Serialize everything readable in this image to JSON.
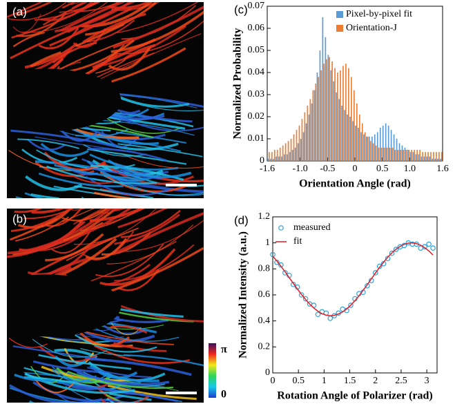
{
  "panels": {
    "a_label": "(a)",
    "b_label": "(b)",
    "colorbar": {
      "max_label": "π",
      "min_label": "0"
    }
  },
  "chart_data": [
    {
      "type": "histogram",
      "panel_label": "(c)",
      "x_label": "Orientation Angle (rad)",
      "y_label": "Normalized Probability",
      "bins": [
        -1.6,
        -1.55,
        -1.5,
        -1.45,
        -1.4,
        -1.35,
        -1.3,
        -1.25,
        -1.2,
        -1.15,
        -1.1,
        -1.05,
        -1.0,
        -0.95,
        -0.9,
        -0.85,
        -0.8,
        -0.75,
        -0.7,
        -0.65,
        -0.6,
        -0.55,
        -0.5,
        -0.45,
        -0.4,
        -0.35,
        -0.3,
        -0.25,
        -0.2,
        -0.15,
        -0.1,
        -0.05,
        0,
        0.05,
        0.1,
        0.15,
        0.2,
        0.25,
        0.3,
        0.35,
        0.4,
        0.45,
        0.5,
        0.55,
        0.6,
        0.65,
        0.7,
        0.75,
        0.8,
        0.85,
        0.9,
        0.95,
        1.0,
        1.05,
        1.1,
        1.15,
        1.2,
        1.25,
        1.3,
        1.35,
        1.4,
        1.45,
        1.5,
        1.55,
        1.6
      ],
      "series": [
        {
          "name": "Pixel-by-pixel fit",
          "color": "#5b9bd5",
          "values": [
            0.001,
            0.001,
            0.001,
            0.002,
            0.002,
            0.002,
            0.003,
            0.003,
            0.004,
            0.005,
            0.006,
            0.008,
            0.01,
            0.013,
            0.017,
            0.021,
            0.026,
            0.032,
            0.04,
            0.05,
            0.065,
            0.056,
            0.048,
            0.041,
            0.036,
            0.031,
            0.028,
            0.025,
            0.023,
            0.021,
            0.02,
            0.018,
            0.016,
            0.015,
            0.013,
            0.012,
            0.011,
            0.011,
            0.011,
            0.012,
            0.013,
            0.015,
            0.016,
            0.017,
            0.016,
            0.014,
            0.012,
            0.01,
            0.008,
            0.007,
            0.006,
            0.005,
            0.004,
            0.004,
            0.003,
            0.003,
            0.002,
            0.002,
            0.002,
            0.002,
            0.001,
            0.001,
            0.001,
            0.001
          ]
        },
        {
          "name": "Orientation-J",
          "color": "#ed7d31",
          "values": [
            0.004,
            0.004,
            0.005,
            0.005,
            0.006,
            0.007,
            0.008,
            0.009,
            0.01,
            0.012,
            0.014,
            0.016,
            0.019,
            0.022,
            0.025,
            0.028,
            0.032,
            0.035,
            0.038,
            0.041,
            0.044,
            0.046,
            0.047,
            0.045,
            0.042,
            0.04,
            0.041,
            0.043,
            0.044,
            0.042,
            0.038,
            0.032,
            0.026,
            0.021,
            0.017,
            0.013,
            0.011,
            0.009,
            0.008,
            0.007,
            0.006,
            0.006,
            0.006,
            0.006,
            0.006,
            0.006,
            0.005,
            0.005,
            0.005,
            0.005,
            0.005,
            0.005,
            0.005,
            0.005,
            0.005,
            0.005,
            0.004,
            0.004,
            0.004,
            0.004,
            0.004,
            0.004,
            0.004,
            0.004
          ]
        }
      ],
      "xlim": [
        -1.6,
        1.6
      ],
      "ylim": [
        0,
        0.07
      ],
      "xticks": [
        {
          "value": -1.6,
          "label": "-1.6"
        },
        {
          "value": -1,
          "label": "-1.0"
        },
        -0.5,
        0,
        0.5,
        {
          "value": 1,
          "label": "1.0"
        },
        1.6
      ],
      "yticks": [
        0,
        0.01,
        0.02,
        0.03,
        0.04,
        0.05,
        0.06,
        0.07
      ],
      "legend": "upper-right"
    },
    {
      "type": "scatter",
      "panel_label": "(d)",
      "x_label": "Rotation Angle of Polarizer (rad)",
      "y_label": "Normalized Intensity (a.u.)",
      "x": [
        0,
        0.08,
        0.16,
        0.24,
        0.32,
        0.4,
        0.48,
        0.56,
        0.64,
        0.72,
        0.8,
        0.88,
        0.96,
        1.04,
        1.12,
        1.2,
        1.28,
        1.36,
        1.44,
        1.52,
        1.6,
        1.68,
        1.76,
        1.84,
        1.92,
        2.0,
        2.08,
        2.16,
        2.24,
        2.32,
        2.4,
        2.48,
        2.56,
        2.64,
        2.72,
        2.8,
        2.88,
        2.96,
        3.04,
        3.12
      ],
      "series": [
        {
          "name": "measured",
          "color": "#2e9fd8",
          "style": "markers",
          "values": [
            0.91,
            0.85,
            0.83,
            0.77,
            0.75,
            0.68,
            0.66,
            0.6,
            0.57,
            0.53,
            0.52,
            0.45,
            0.47,
            0.46,
            0.42,
            0.44,
            0.46,
            0.49,
            0.48,
            0.52,
            0.57,
            0.61,
            0.62,
            0.67,
            0.71,
            0.77,
            0.82,
            0.84,
            0.88,
            0.92,
            0.95,
            0.97,
            0.98,
            1.0,
            0.99,
            0.99,
            0.96,
            0.97,
            0.99,
            0.96
          ]
        },
        {
          "name": "fit",
          "color": "#e0262b",
          "style": "line",
          "values": [
            0.898,
            0.861,
            0.82,
            0.778,
            0.733,
            0.689,
            0.645,
            0.603,
            0.564,
            0.529,
            0.499,
            0.474,
            0.455,
            0.444,
            0.44,
            0.443,
            0.453,
            0.469,
            0.492,
            0.521,
            0.555,
            0.593,
            0.635,
            0.678,
            0.723,
            0.768,
            0.811,
            0.852,
            0.89,
            0.923,
            0.951,
            0.973,
            0.989,
            0.998,
            1.0,
            0.994,
            0.982,
            0.963,
            0.938,
            0.907
          ]
        }
      ],
      "xlim": [
        0,
        3.2
      ],
      "ylim": [
        0,
        1.2
      ],
      "xticks": [
        0,
        0.5,
        1,
        1.5,
        2,
        2.5,
        3
      ],
      "yticks": [
        0,
        0.2,
        0.4,
        0.6,
        0.8,
        1,
        1.2
      ],
      "legend": "upper-left"
    }
  ]
}
